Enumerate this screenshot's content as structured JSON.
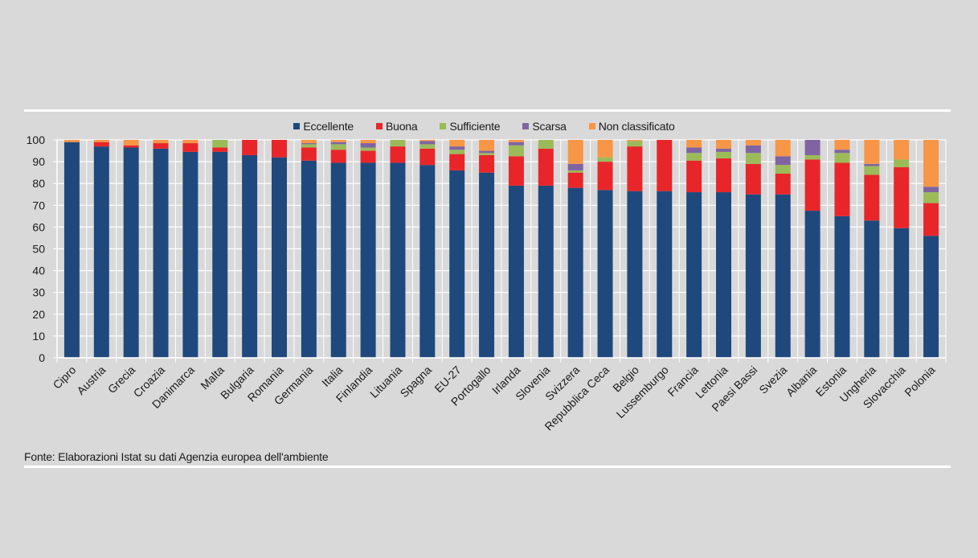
{
  "chart_data": {
    "type": "bar",
    "stacked": true,
    "categories": [
      "Cipro",
      "Austria",
      "Grecia",
      "Croazia",
      "Danimarca",
      "Malta",
      "Bulgaria",
      "Romania",
      "Germania",
      "Italia",
      "Finlandia",
      "Lituania",
      "Spagna",
      "EU-27",
      "Portogallo",
      "Irlanda",
      "Slovenia",
      "Svizzera",
      "Repubblica Ceca",
      "Belgio",
      "Lussemburgo",
      "Francia",
      "Lettonia",
      "Paesi Bassi",
      "Svezia",
      "Albania",
      "Estonia",
      "Ungheria",
      "Slovacchia",
      "Polonia"
    ],
    "series": [
      {
        "name": "Eccellente",
        "color": "#1f497d",
        "values": [
          99,
          97,
          96.5,
          96,
          94.5,
          94.5,
          93,
          92,
          90.5,
          89.5,
          89.5,
          89.5,
          88.5,
          86,
          85,
          79,
          79,
          78,
          77,
          76.5,
          76.5,
          76,
          76,
          75,
          75,
          67.5,
          65,
          63,
          59.5,
          56
        ]
      },
      {
        "name": "Buona",
        "color": "#e8262a",
        "values": [
          0,
          2,
          1,
          2.5,
          4,
          2,
          7,
          8,
          6,
          6,
          5.5,
          7.5,
          7.5,
          7.5,
          8,
          13.5,
          17,
          7,
          13,
          20.5,
          23.5,
          14.5,
          15.5,
          14,
          9.5,
          23.5,
          24.5,
          21,
          28,
          15
        ]
      },
      {
        "name": "Sufficiente",
        "color": "#9bbb59",
        "values": [
          0,
          0,
          0,
          0,
          0,
          3.5,
          0,
          0,
          1.5,
          2.5,
          1.5,
          3,
          2,
          2,
          1,
          5,
          4,
          1,
          2,
          2.5,
          0,
          3.5,
          3,
          5,
          4,
          2,
          4.5,
          4,
          3.5,
          5
        ]
      },
      {
        "name": "Scarsa",
        "color": "#8064a2",
        "values": [
          0,
          0,
          0,
          0,
          0,
          0,
          0,
          0,
          0.5,
          1,
          2,
          0,
          1.5,
          1.5,
          1,
          1.5,
          0,
          3,
          0,
          0,
          0,
          2.5,
          1.5,
          3.5,
          4,
          7,
          1.5,
          1,
          0,
          2.5
        ]
      },
      {
        "name": "Non classificato",
        "color": "#f79646",
        "values": [
          1,
          1,
          2.5,
          1.5,
          1.5,
          0,
          0,
          0,
          1.5,
          1,
          1.5,
          0,
          0.5,
          3,
          5,
          1,
          0,
          11,
          8,
          0.5,
          0,
          3.5,
          4,
          2.5,
          7.5,
          0,
          4.5,
          11,
          9,
          21.5
        ]
      }
    ],
    "y_ticks": [
      0,
      10,
      20,
      30,
      40,
      50,
      60,
      70,
      80,
      90,
      100
    ],
    "ylim": [
      0,
      100
    ],
    "grid": true,
    "xlabel": "",
    "ylabel": "",
    "title": "",
    "legend_position": "top-center"
  },
  "source_text": "Fonte: Elaborazioni Istat su dati Agenzia europea dell'ambiente"
}
